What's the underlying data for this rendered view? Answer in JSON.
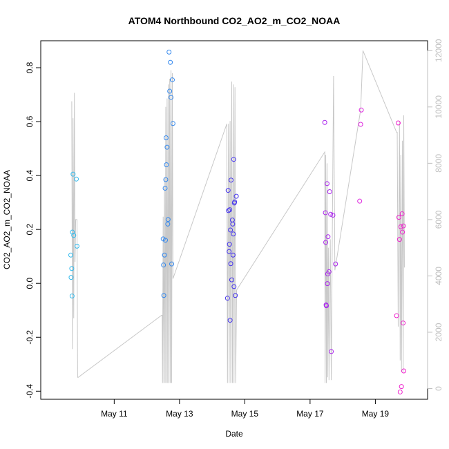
{
  "chart_data": {
    "type": "scatter",
    "title": "ATOM4 Northbound CO2_AO2_m_CO2_NOAA",
    "xlabel": "Date",
    "ylabel": "CO2_AO2_m_CO2_NOAA",
    "x_unit": "days since May 1",
    "xlim": [
      8.75,
      20.6
    ],
    "ylim": [
      -0.43,
      0.9
    ],
    "x_ticks": [
      {
        "value": 11,
        "label": "May 11"
      },
      {
        "value": 13,
        "label": "May 13"
      },
      {
        "value": 15,
        "label": "May 15"
      },
      {
        "value": 17,
        "label": "May 17"
      },
      {
        "value": 19,
        "label": "May 19"
      }
    ],
    "y_ticks": [
      {
        "value": -0.4,
        "label": "-0.4"
      },
      {
        "value": -0.2,
        "label": "-0.2"
      },
      {
        "value": 0.0,
        "label": "0.0"
      },
      {
        "value": 0.2,
        "label": "0.2"
      },
      {
        "value": 0.4,
        "label": "0.4"
      },
      {
        "value": 0.6,
        "label": "0.6"
      },
      {
        "value": 0.8,
        "label": "0.8"
      }
    ],
    "y2_ticks": [
      {
        "value": 0,
        "label": "0"
      },
      {
        "value": 2000,
        "label": "2000"
      },
      {
        "value": 4000,
        "label": "4000"
      },
      {
        "value": 6000,
        "label": "6000"
      },
      {
        "value": 8000,
        "label": "8000"
      },
      {
        "value": 10000,
        "label": "10000"
      },
      {
        "value": 12000,
        "label": "12000"
      }
    ],
    "y2lim": [
      -380,
      12350
    ],
    "series": [
      {
        "name": "CO2_AO2_m_CO2_NOAA",
        "style": "open circles, colored by time (cyan to magenta)",
        "points": [
          {
            "x": 9.67,
            "y": 0.105,
            "color": "#33bbee"
          },
          {
            "x": 9.68,
            "y": 0.022,
            "color": "#33bbee"
          },
          {
            "x": 9.7,
            "y": 0.055,
            "color": "#33bbee"
          },
          {
            "x": 9.71,
            "y": -0.047,
            "color": "#33bbee"
          },
          {
            "x": 9.72,
            "y": 0.19,
            "color": "#33bbee"
          },
          {
            "x": 9.74,
            "y": 0.405,
            "color": "#33bbee"
          },
          {
            "x": 9.76,
            "y": 0.178,
            "color": "#33bbee"
          },
          {
            "x": 9.84,
            "y": 0.387,
            "color": "#33bbee"
          },
          {
            "x": 9.86,
            "y": 0.138,
            "color": "#33bbee"
          },
          {
            "x": 12.5,
            "y": 0.165,
            "color": "#3388ee"
          },
          {
            "x": 12.51,
            "y": 0.068,
            "color": "#3388ee"
          },
          {
            "x": 12.52,
            "y": -0.045,
            "color": "#3388ee"
          },
          {
            "x": 12.54,
            "y": 0.105,
            "color": "#3388ee"
          },
          {
            "x": 12.56,
            "y": 0.353,
            "color": "#3388ee"
          },
          {
            "x": 12.57,
            "y": 0.16,
            "color": "#3388ee"
          },
          {
            "x": 12.58,
            "y": 0.385,
            "color": "#3388ee"
          },
          {
            "x": 12.59,
            "y": 0.54,
            "color": "#3388ee"
          },
          {
            "x": 12.6,
            "y": 0.44,
            "color": "#3388ee"
          },
          {
            "x": 12.62,
            "y": 0.505,
            "color": "#3388ee"
          },
          {
            "x": 12.64,
            "y": 0.22,
            "color": "#3388ee"
          },
          {
            "x": 12.65,
            "y": 0.237,
            "color": "#3388ee"
          },
          {
            "x": 12.68,
            "y": 0.858,
            "color": "#3388ee"
          },
          {
            "x": 12.7,
            "y": 0.713,
            "color": "#3388ee"
          },
          {
            "x": 12.72,
            "y": 0.82,
            "color": "#3388ee"
          },
          {
            "x": 12.74,
            "y": 0.69,
            "color": "#3388ee"
          },
          {
            "x": 12.76,
            "y": 0.072,
            "color": "#3388ee"
          },
          {
            "x": 12.78,
            "y": 0.755,
            "color": "#3388ee"
          },
          {
            "x": 12.8,
            "y": 0.593,
            "color": "#3388ee"
          },
          {
            "x": 14.47,
            "y": -0.055,
            "color": "#4433ee"
          },
          {
            "x": 14.49,
            "y": 0.345,
            "color": "#4433ee"
          },
          {
            "x": 14.5,
            "y": 0.27,
            "color": "#4433ee"
          },
          {
            "x": 14.52,
            "y": 0.118,
            "color": "#4433ee"
          },
          {
            "x": 14.53,
            "y": 0.145,
            "color": "#4433ee"
          },
          {
            "x": 14.54,
            "y": 0.273,
            "color": "#4433ee"
          },
          {
            "x": 14.55,
            "y": -0.137,
            "color": "#4433ee"
          },
          {
            "x": 14.56,
            "y": 0.198,
            "color": "#4433ee"
          },
          {
            "x": 14.57,
            "y": 0.073,
            "color": "#4433ee"
          },
          {
            "x": 14.58,
            "y": 0.383,
            "color": "#4433ee"
          },
          {
            "x": 14.6,
            "y": 0.013,
            "color": "#4433ee"
          },
          {
            "x": 14.62,
            "y": 0.235,
            "color": "#4433ee"
          },
          {
            "x": 14.63,
            "y": 0.22,
            "color": "#4433ee"
          },
          {
            "x": 14.64,
            "y": 0.105,
            "color": "#4433ee"
          },
          {
            "x": 14.65,
            "y": 0.183,
            "color": "#4433ee"
          },
          {
            "x": 14.66,
            "y": 0.46,
            "color": "#4433ee"
          },
          {
            "x": 14.67,
            "y": -0.012,
            "color": "#4433ee"
          },
          {
            "x": 14.68,
            "y": 0.298,
            "color": "#4433ee"
          },
          {
            "x": 14.69,
            "y": 0.302,
            "color": "#4433ee"
          },
          {
            "x": 14.71,
            "y": -0.045,
            "color": "#4433ee"
          },
          {
            "x": 14.74,
            "y": 0.323,
            "color": "#4433ee"
          },
          {
            "x": 17.45,
            "y": 0.597,
            "color": "#aa22ee"
          },
          {
            "x": 17.47,
            "y": 0.262,
            "color": "#aa22ee"
          },
          {
            "x": 17.48,
            "y": 0.152,
            "color": "#aa22ee"
          },
          {
            "x": 17.49,
            "y": -0.08,
            "color": "#aa22ee"
          },
          {
            "x": 17.5,
            "y": -0.083,
            "color": "#aa22ee"
          },
          {
            "x": 17.52,
            "y": 0.37,
            "color": "#aa22ee"
          },
          {
            "x": 17.53,
            "y": -0.001,
            "color": "#aa22ee"
          },
          {
            "x": 17.54,
            "y": 0.035,
            "color": "#aa22ee"
          },
          {
            "x": 17.55,
            "y": 0.173,
            "color": "#aa22ee"
          },
          {
            "x": 17.58,
            "y": 0.043,
            "color": "#aa22ee"
          },
          {
            "x": 17.6,
            "y": 0.34,
            "color": "#aa22ee"
          },
          {
            "x": 17.63,
            "y": 0.256,
            "color": "#aa22ee"
          },
          {
            "x": 17.65,
            "y": -0.253,
            "color": "#aa22ee"
          },
          {
            "x": 17.7,
            "y": 0.253,
            "color": "#aa22ee"
          },
          {
            "x": 17.78,
            "y": 0.072,
            "color": "#aa22ee"
          },
          {
            "x": 18.52,
            "y": 0.305,
            "color": "#dd22dd"
          },
          {
            "x": 18.55,
            "y": 0.59,
            "color": "#dd22dd"
          },
          {
            "x": 18.57,
            "y": 0.643,
            "color": "#dd22dd"
          },
          {
            "x": 19.65,
            "y": -0.12,
            "color": "#ee22cc"
          },
          {
            "x": 19.7,
            "y": 0.595,
            "color": "#ee22cc"
          },
          {
            "x": 19.72,
            "y": 0.245,
            "color": "#ee22cc"
          },
          {
            "x": 19.74,
            "y": 0.163,
            "color": "#ee22cc"
          },
          {
            "x": 19.76,
            "y": -0.403,
            "color": "#ee22cc"
          },
          {
            "x": 19.78,
            "y": 0.21,
            "color": "#ee22cc"
          },
          {
            "x": 19.8,
            "y": -0.383,
            "color": "#ee22cc"
          },
          {
            "x": 19.82,
            "y": 0.258,
            "color": "#ee22cc"
          },
          {
            "x": 19.83,
            "y": 0.19,
            "color": "#ee22cc"
          },
          {
            "x": 19.85,
            "y": -0.147,
            "color": "#ee22cc"
          },
          {
            "x": 19.86,
            "y": 0.213,
            "color": "#ee22cc"
          },
          {
            "x": 19.87,
            "y": -0.325,
            "color": "#ee22cc"
          }
        ]
      },
      {
        "name": "secondary trace (right axis)",
        "style": "thin gray line",
        "color": "#c8c8c8",
        "axis": "right",
        "points": [
          {
            "x": 9.7,
            "y": 10200
          },
          {
            "x": 9.72,
            "y": 1400
          },
          {
            "x": 9.74,
            "y": 9600
          },
          {
            "x": 9.76,
            "y": 2500
          },
          {
            "x": 9.78,
            "y": 10500
          },
          {
            "x": 9.8,
            "y": 4500
          },
          {
            "x": 9.82,
            "y": 6000
          },
          {
            "x": 9.86,
            "y": 6000
          },
          {
            "x": 9.88,
            "y": 400
          },
          {
            "x": 9.9,
            "y": 400
          },
          {
            "x": 12.45,
            "y": 2600
          },
          {
            "x": 12.47,
            "y": 2600
          },
          {
            "x": 12.48,
            "y": 200
          },
          {
            "x": 12.5,
            "y": 6100
          },
          {
            "x": 12.52,
            "y": 200
          },
          {
            "x": 12.54,
            "y": 7500
          },
          {
            "x": 12.56,
            "y": 200
          },
          {
            "x": 12.58,
            "y": 10000
          },
          {
            "x": 12.6,
            "y": 200
          },
          {
            "x": 12.62,
            "y": 10300
          },
          {
            "x": 12.64,
            "y": 200
          },
          {
            "x": 12.66,
            "y": 10800
          },
          {
            "x": 12.68,
            "y": 200
          },
          {
            "x": 12.7,
            "y": 11000
          },
          {
            "x": 12.72,
            "y": 200
          },
          {
            "x": 12.74,
            "y": 11300
          },
          {
            "x": 12.76,
            "y": 200
          },
          {
            "x": 12.78,
            "y": 11200
          },
          {
            "x": 12.8,
            "y": 3900
          },
          {
            "x": 14.45,
            "y": 9400
          },
          {
            "x": 14.47,
            "y": 200
          },
          {
            "x": 14.5,
            "y": 9400
          },
          {
            "x": 14.52,
            "y": 200
          },
          {
            "x": 14.55,
            "y": 9500
          },
          {
            "x": 14.57,
            "y": 200
          },
          {
            "x": 14.6,
            "y": 10900
          },
          {
            "x": 14.62,
            "y": 200
          },
          {
            "x": 14.65,
            "y": 10800
          },
          {
            "x": 14.67,
            "y": 200
          },
          {
            "x": 14.7,
            "y": 10700
          },
          {
            "x": 14.72,
            "y": 200
          },
          {
            "x": 14.75,
            "y": 3500
          },
          {
            "x": 17.45,
            "y": 8400
          },
          {
            "x": 17.46,
            "y": 200
          },
          {
            "x": 17.48,
            "y": 8300
          },
          {
            "x": 17.5,
            "y": 200
          },
          {
            "x": 17.52,
            "y": 8000
          },
          {
            "x": 17.54,
            "y": 400
          },
          {
            "x": 17.56,
            "y": 5000
          },
          {
            "x": 17.58,
            "y": 300
          },
          {
            "x": 17.62,
            "y": 5300
          },
          {
            "x": 17.65,
            "y": 300
          },
          {
            "x": 17.68,
            "y": 5300
          },
          {
            "x": 17.72,
            "y": 11100
          },
          {
            "x": 17.76,
            "y": 4200
          },
          {
            "x": 18.55,
            "y": 9900
          },
          {
            "x": 18.62,
            "y": 12000
          },
          {
            "x": 19.65,
            "y": 9100
          },
          {
            "x": 19.67,
            "y": 9100
          },
          {
            "x": 19.7,
            "y": 2200
          },
          {
            "x": 19.74,
            "y": 9500
          },
          {
            "x": 19.76,
            "y": 1000
          },
          {
            "x": 19.78,
            "y": 8300
          },
          {
            "x": 19.8,
            "y": 600
          },
          {
            "x": 19.83,
            "y": 8800
          },
          {
            "x": 19.85,
            "y": 600
          },
          {
            "x": 19.87,
            "y": 9700
          },
          {
            "x": 19.89,
            "y": 4300
          }
        ]
      }
    ]
  }
}
